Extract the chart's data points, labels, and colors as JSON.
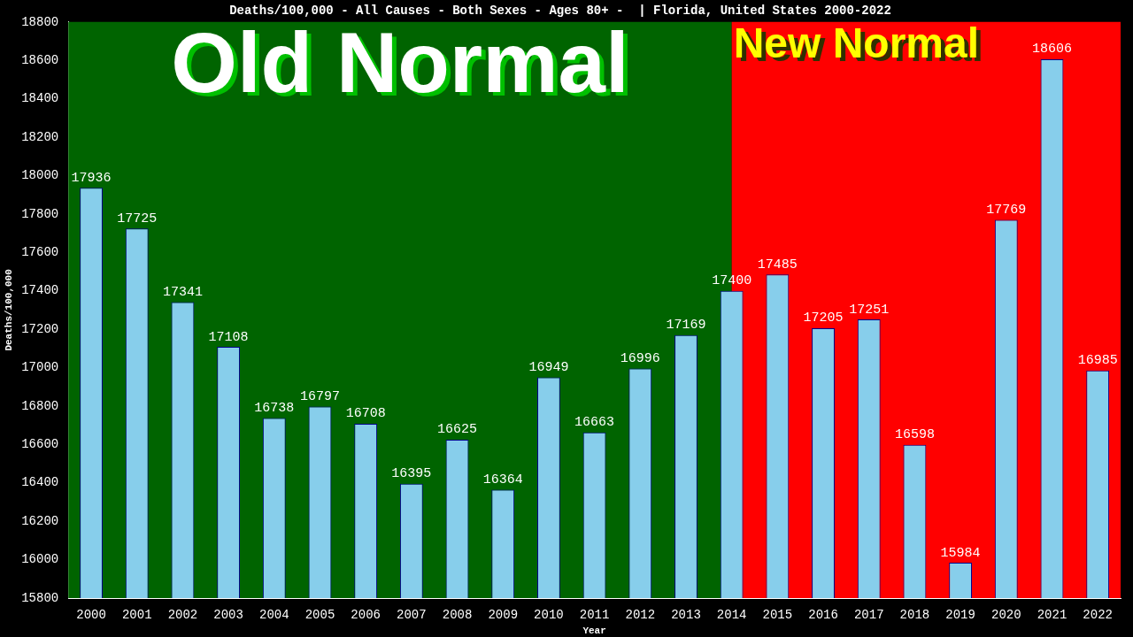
{
  "chart_data": {
    "type": "bar",
    "title": "Deaths/100,000 - All Causes - Both Sexes - Ages 80+ -  | Florida, United States 2000-2022",
    "xlabel": "Year",
    "ylabel": "Deaths/100,000",
    "categories": [
      "2000",
      "2001",
      "2002",
      "2003",
      "2004",
      "2005",
      "2006",
      "2007",
      "2008",
      "2009",
      "2010",
      "2011",
      "2012",
      "2013",
      "2014",
      "2015",
      "2016",
      "2017",
      "2018",
      "2019",
      "2020",
      "2021",
      "2022"
    ],
    "values": [
      17936,
      17725,
      17341,
      17108,
      16738,
      16797,
      16708,
      16395,
      16625,
      16364,
      16949,
      16663,
      16996,
      17169,
      17400,
      17485,
      17205,
      17251,
      16598,
      15984,
      17769,
      18606,
      16985
    ],
    "color": "#87ceeb",
    "ylim": [
      15800,
      18800
    ],
    "yticks": [
      15800,
      16000,
      16200,
      16400,
      16600,
      16800,
      17000,
      17200,
      17400,
      17600,
      17800,
      18000,
      18200,
      18400,
      18600,
      18800
    ],
    "data_labels": true,
    "grid": false,
    "legend": false,
    "bands": [
      {
        "axis": "x",
        "from": "2000",
        "to": "2014",
        "label": "Old Normal",
        "color": "#006400"
      },
      {
        "axis": "x",
        "from": "2014",
        "to": "2022",
        "label": "New Normal",
        "color": "#ff0000"
      }
    ]
  }
}
